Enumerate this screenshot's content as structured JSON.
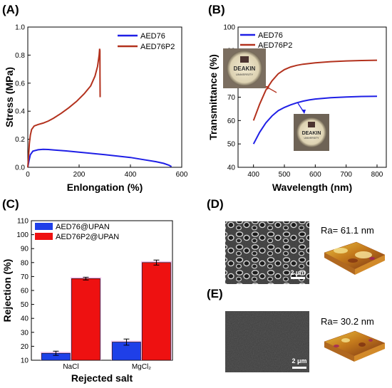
{
  "panels": {
    "A": {
      "label": "(A)"
    },
    "B": {
      "label": "(B)"
    },
    "C": {
      "label": "(C)"
    },
    "D": {
      "label": "(D)",
      "ra_text": "Ra=  61.1 nm",
      "scale_bar": "2 μm"
    },
    "E": {
      "label": "(E)",
      "ra_text": "Ra=  30.2 nm",
      "scale_bar": "2 μm"
    }
  },
  "badge": {
    "name": "DEAKIN",
    "sub": "UNIVERSITY"
  },
  "colors": {
    "blue": "#1f1fe6",
    "red": "#b3321e",
    "bar_blue": "#1f3fe8",
    "bar_red": "#ee1111",
    "bar_glow": "#f4b8ec"
  },
  "chart_data": [
    {
      "type": "line",
      "xlabel": "Enlongation (%)",
      "ylabel": "Stress (MPa)",
      "xlim": [
        0,
        600
      ],
      "ylim": [
        0,
        1.0
      ],
      "xticks": [
        0,
        200,
        400,
        600
      ],
      "yticks": [
        0.0,
        0.2,
        0.4,
        0.6,
        0.8,
        1.0
      ],
      "legend": "top-right",
      "series": [
        {
          "name": "AED76",
          "color": "#1f1fe6",
          "points": [
            [
              0,
              0
            ],
            [
              5,
              0.05
            ],
            [
              10,
              0.09
            ],
            [
              20,
              0.115
            ],
            [
              40,
              0.125
            ],
            [
              60,
              0.128
            ],
            [
              80,
              0.127
            ],
            [
              100,
              0.124
            ],
            [
              150,
              0.117
            ],
            [
              200,
              0.108
            ],
            [
              250,
              0.099
            ],
            [
              300,
              0.09
            ],
            [
              350,
              0.08
            ],
            [
              400,
              0.07
            ],
            [
              450,
              0.055
            ],
            [
              500,
              0.04
            ],
            [
              530,
              0.028
            ],
            [
              550,
              0.015
            ],
            [
              560,
              0.005
            ]
          ]
        },
        {
          "name": "AED76P2",
          "color": "#b3321e",
          "points": [
            [
              0,
              0
            ],
            [
              3,
              0.08
            ],
            [
              6,
              0.17
            ],
            [
              10,
              0.23
            ],
            [
              15,
              0.27
            ],
            [
              25,
              0.295
            ],
            [
              40,
              0.305
            ],
            [
              60,
              0.315
            ],
            [
              80,
              0.33
            ],
            [
              100,
              0.35
            ],
            [
              130,
              0.385
            ],
            [
              160,
              0.425
            ],
            [
              190,
              0.47
            ],
            [
              220,
              0.525
            ],
            [
              245,
              0.58
            ],
            [
              262,
              0.65
            ],
            [
              272,
              0.72
            ],
            [
              278,
              0.8
            ],
            [
              280,
              0.845
            ],
            [
              281,
              0.83
            ],
            [
              281.5,
              0.65
            ],
            [
              282,
              0.5
            ]
          ]
        }
      ]
    },
    {
      "type": "line",
      "xlabel": "Wavelength (nm)",
      "ylabel": "Transmittance (%)",
      "xlim": [
        350,
        830
      ],
      "ylim": [
        40,
        100
      ],
      "xticks": [
        400,
        500,
        600,
        700,
        800
      ],
      "yticks": [
        40,
        50,
        60,
        70,
        80,
        90,
        100
      ],
      "legend": "top-left",
      "series": [
        {
          "name": "AED76",
          "color": "#1f1fe6",
          "points": [
            [
              400,
              50
            ],
            [
              420,
              55
            ],
            [
              440,
              59
            ],
            [
              460,
              62
            ],
            [
              480,
              64.2
            ],
            [
              500,
              65.6
            ],
            [
              520,
              66.7
            ],
            [
              540,
              67.6
            ],
            [
              560,
              68.3
            ],
            [
              580,
              68.8
            ],
            [
              600,
              69.2
            ],
            [
              650,
              69.8
            ],
            [
              700,
              70.1
            ],
            [
              750,
              70.3
            ],
            [
              800,
              70.4
            ]
          ]
        },
        {
          "name": "AED76P2",
          "color": "#b3321e",
          "points": [
            [
              400,
              60
            ],
            [
              420,
              67
            ],
            [
              440,
              73
            ],
            [
              460,
              77
            ],
            [
              480,
              80
            ],
            [
              500,
              81.8
            ],
            [
              520,
              82.9
            ],
            [
              540,
              83.6
            ],
            [
              560,
              84.1
            ],
            [
              580,
              84.4
            ],
            [
              600,
              84.7
            ],
            [
              650,
              85.2
            ],
            [
              700,
              85.5
            ],
            [
              750,
              85.7
            ],
            [
              800,
              85.8
            ]
          ]
        }
      ]
    },
    {
      "type": "bar",
      "xlabel": "Rejected salt",
      "ylabel": "Rejection (%)",
      "categories": [
        "NaCl",
        "MgCl₂"
      ],
      "ylim": [
        10,
        110
      ],
      "yticks": [
        10,
        20,
        30,
        40,
        50,
        60,
        70,
        80,
        90,
        100,
        110
      ],
      "legend": "top-left",
      "series": [
        {
          "name": "AED76@UPAN",
          "color": "#1f3fe8",
          "values": [
            15,
            23
          ],
          "errors": [
            1.5,
            2.2
          ]
        },
        {
          "name": "AED76P2@UPAN",
          "color": "#ee1111",
          "values": [
            68.5,
            80
          ],
          "errors": [
            1.0,
            1.8
          ]
        }
      ]
    }
  ]
}
